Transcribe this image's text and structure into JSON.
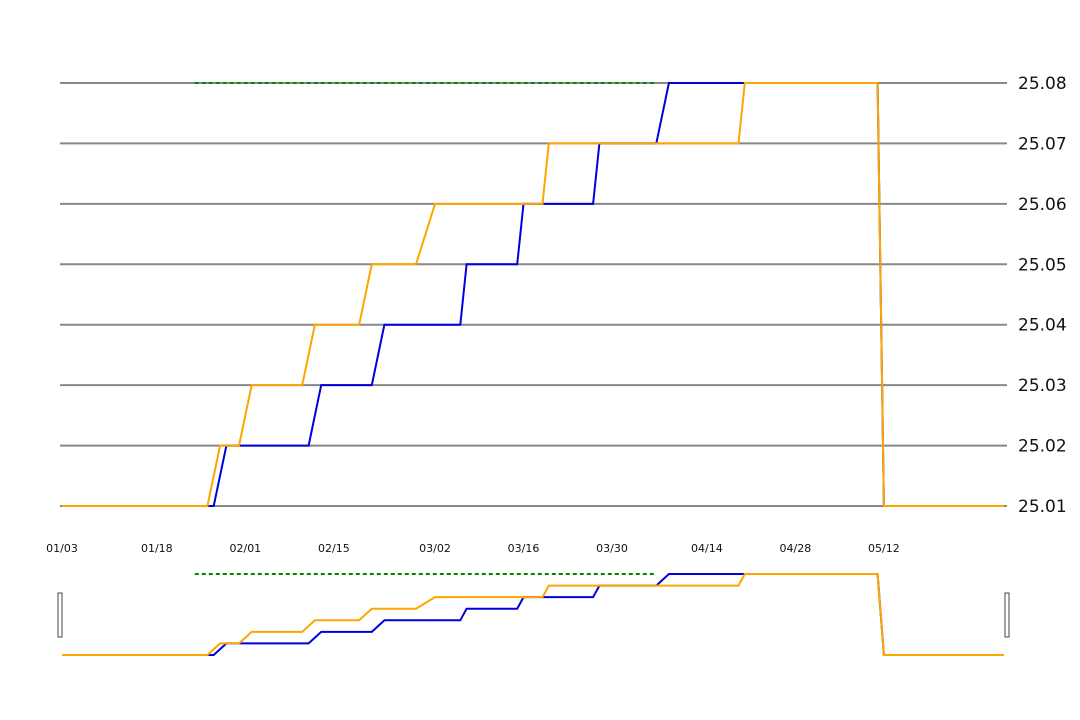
{
  "chart_data": {
    "type": "line",
    "title": "",
    "xlabel": "",
    "ylabel": "",
    "ylim": [
      25.01,
      25.08
    ],
    "y_ticks": [
      "25.08",
      "25.07",
      "25.06",
      "25.05",
      "25.04",
      "25.03",
      "25.02",
      "25.01"
    ],
    "y_axis_side": "right",
    "x_ticks": [
      "01/03",
      "01/18",
      "02/01",
      "02/15",
      "03/02",
      "03/16",
      "03/30",
      "04/14",
      "04/28",
      "05/12"
    ],
    "x_range": [
      "01/03",
      "05/31"
    ],
    "grid": "horizontal",
    "legend": "none",
    "series": [
      {
        "color": "#0000dd",
        "points": [
          [
            "01/03",
            25.01
          ],
          [
            "01/27",
            25.01
          ],
          [
            "01/29",
            25.02
          ],
          [
            "02/11",
            25.02
          ],
          [
            "02/13",
            25.03
          ],
          [
            "02/21",
            25.03
          ],
          [
            "02/23",
            25.04
          ],
          [
            "03/06",
            25.04
          ],
          [
            "03/07",
            25.05
          ],
          [
            "03/15",
            25.05
          ],
          [
            "03/16",
            25.06
          ],
          [
            "03/27",
            25.06
          ],
          [
            "03/28",
            25.07
          ],
          [
            "04/06",
            25.07
          ],
          [
            "04/08",
            25.08
          ],
          [
            "05/11",
            25.08
          ],
          [
            "05/12",
            25.01
          ],
          [
            "05/31",
            25.01
          ]
        ]
      },
      {
        "color": "#ffa500",
        "points": [
          [
            "01/03",
            25.01
          ],
          [
            "01/26",
            25.01
          ],
          [
            "01/28",
            25.02
          ],
          [
            "01/31",
            25.02
          ],
          [
            "02/02",
            25.03
          ],
          [
            "02/10",
            25.03
          ],
          [
            "02/12",
            25.04
          ],
          [
            "02/19",
            25.04
          ],
          [
            "02/21",
            25.05
          ],
          [
            "02/28",
            25.05
          ],
          [
            "03/02",
            25.06
          ],
          [
            "03/19",
            25.06
          ],
          [
            "03/20",
            25.07
          ],
          [
            "04/19",
            25.07
          ],
          [
            "04/20",
            25.08
          ],
          [
            "05/11",
            25.08
          ],
          [
            "05/12",
            25.01
          ],
          [
            "05/31",
            25.01
          ]
        ]
      },
      {
        "color": "#008800",
        "style": "dashed",
        "points": [
          [
            "01/24",
            25.08
          ],
          [
            "04/06",
            25.08
          ]
        ]
      }
    ]
  },
  "navigator": {
    "left_handle": "range-start-handle",
    "right_handle": "range-end-handle"
  }
}
